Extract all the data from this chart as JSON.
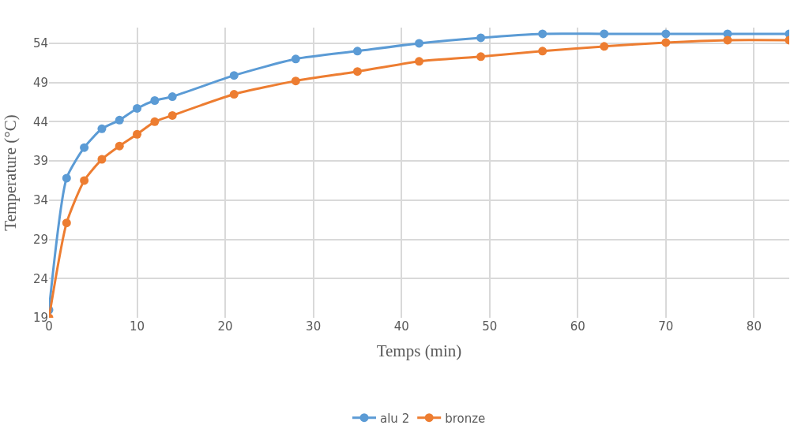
{
  "chart_data": {
    "type": "line",
    "xlabel": "Temps (min)",
    "ylabel": "Temperature (°C)",
    "x": [
      0,
      2,
      4,
      6,
      8,
      10,
      12,
      14,
      21,
      28,
      35,
      42,
      49,
      56,
      63,
      70,
      77,
      84
    ],
    "series": [
      {
        "name": "alu 2",
        "color": "#5b9bd5",
        "values": [
          20.0,
          36.8,
          40.7,
          43.1,
          44.2,
          45.7,
          46.7,
          47.2,
          49.9,
          52.0,
          53.0,
          54.0,
          54.7,
          55.2,
          55.2,
          55.2,
          55.2,
          55.2
        ]
      },
      {
        "name": "bronze",
        "color": "#ed7d31",
        "values": [
          19.0,
          31.1,
          36.5,
          39.2,
          40.9,
          42.4,
          44.0,
          44.8,
          47.5,
          49.2,
          50.4,
          51.7,
          52.3,
          53.0,
          53.6,
          54.1,
          54.4,
          54.4
        ]
      }
    ],
    "xlim": [
      0,
      84
    ],
    "xticks": [
      0,
      10,
      20,
      30,
      40,
      50,
      60,
      70,
      80
    ],
    "ylim": [
      19,
      56
    ],
    "yticks": [
      19,
      24,
      29,
      34,
      39,
      44,
      49,
      54
    ],
    "grid": true,
    "legend": "bottom",
    "marker": "circle",
    "line_style": "solid"
  }
}
